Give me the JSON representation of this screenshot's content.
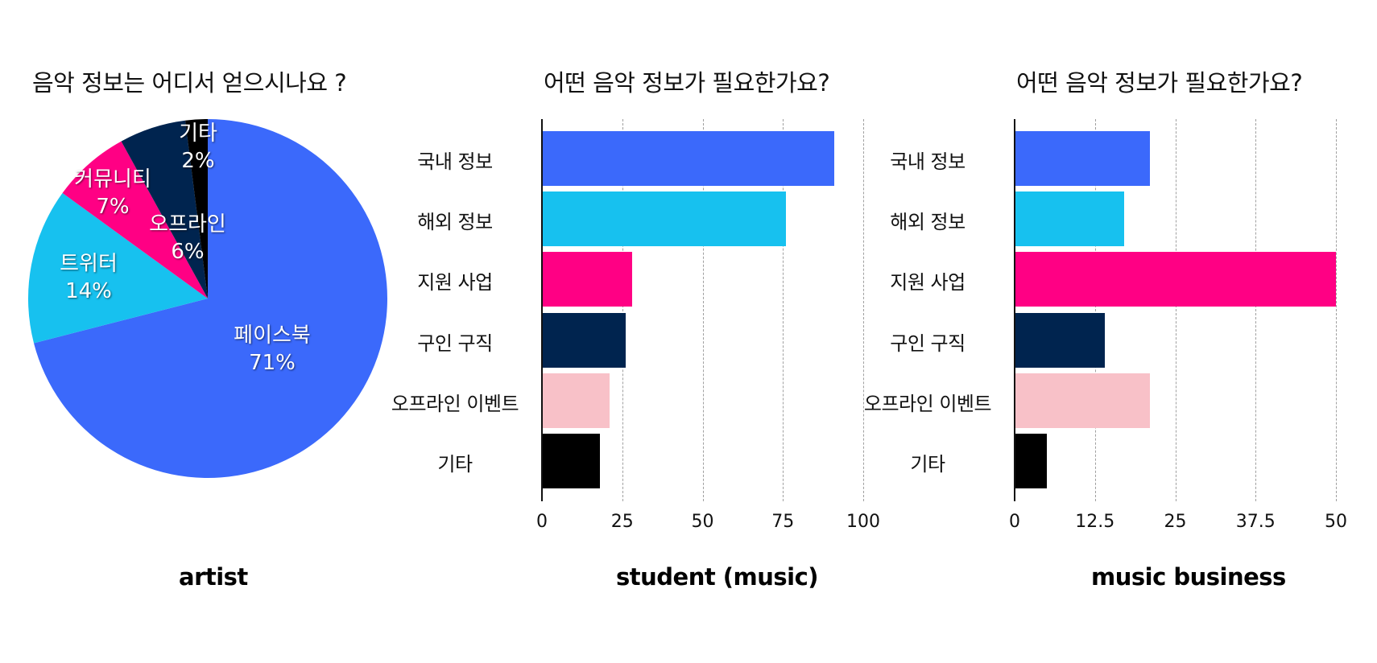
{
  "chart_data": [
    {
      "type": "pie",
      "title": "음악 정보는 어디서 얻으시나요 ?",
      "caption": "artist",
      "categories": [
        "페이스북",
        "트위터",
        "커뮤니티",
        "오프라인",
        "기타"
      ],
      "values": [
        71,
        14,
        7,
        6,
        2
      ],
      "labels": [
        "71%",
        "14%",
        "7%",
        "6%",
        "2%"
      ],
      "colors": [
        "#3b69fb",
        "#17c1ef",
        "#ff0084",
        "#00244f",
        "#000000"
      ],
      "start_angle": "12 o'clock, clockwise"
    },
    {
      "type": "bar",
      "orientation": "horizontal",
      "title": "어떤 음악 정보가 필요한가요?",
      "caption": "student (music)",
      "categories": [
        "국내 정보",
        "해외 정보",
        "지원 사업",
        "구인 구직",
        "오프라인 이벤트",
        "기타"
      ],
      "values": [
        91,
        76,
        28,
        26,
        21,
        18
      ],
      "colors": [
        "#3b69fb",
        "#17c1ef",
        "#ff0084",
        "#00244f",
        "#f8c1c8",
        "#000000"
      ],
      "xlim": [
        0,
        100
      ],
      "xticks": [
        "0",
        "25",
        "50",
        "75",
        "100"
      ],
      "grid": "vertical dashed"
    },
    {
      "type": "bar",
      "orientation": "horizontal",
      "title": "어떤 음악 정보가 필요한가요?",
      "caption": "music business",
      "categories": [
        "국내 정보",
        "해외 정보",
        "지원 사업",
        "구인 구직",
        "오프라인 이벤트",
        "기타"
      ],
      "values": [
        21,
        17,
        50,
        14,
        21,
        5
      ],
      "colors": [
        "#3b69fb",
        "#17c1ef",
        "#ff0084",
        "#00244f",
        "#f8c1c8",
        "#000000"
      ],
      "xlim": [
        0,
        50
      ],
      "xticks": [
        "0",
        "12.5",
        "25",
        "37.5",
        "50"
      ],
      "grid": "vertical dashed"
    }
  ]
}
